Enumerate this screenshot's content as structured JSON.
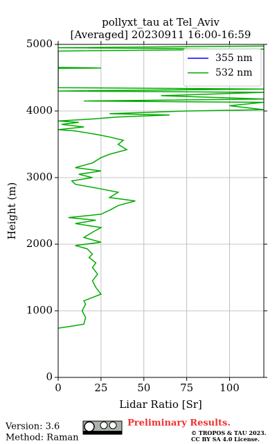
{
  "chart_data": {
    "type": "line",
    "title": "pollyxt_tau at Tel_Aviv",
    "subtitle": "[Averaged] 20230911 16:00-16:59",
    "x_label": "Lidar Ratio [Sr]",
    "y_label": "Height (m)",
    "xlim": [
      0,
      120
    ],
    "xticks": [
      0,
      25,
      50,
      75,
      100
    ],
    "ylim": [
      0,
      5000
    ],
    "yticks": [
      0,
      1000,
      2000,
      3000,
      4000,
      5000
    ],
    "grid": true,
    "legend": "upper right",
    "series": [
      {
        "name": "355 nm",
        "color": "#0000ff",
        "x": [],
        "values": []
      },
      {
        "name": "532 nm",
        "color": "#00aa00",
        "x": [
          0,
          8,
          15,
          16,
          14,
          16,
          15,
          20,
          25,
          22,
          20,
          23,
          20,
          22,
          18,
          20,
          17,
          10,
          25,
          15,
          20,
          25,
          10,
          22,
          6,
          25,
          30,
          35,
          45,
          30,
          35,
          25,
          10,
          8,
          20,
          12,
          25,
          10,
          20,
          25,
          30,
          40,
          35,
          38,
          30,
          22,
          10,
          0,
          15,
          2,
          12,
          0,
          20,
          35,
          65,
          30,
          75,
          120,
          100,
          120,
          15,
          120,
          60,
          120,
          0,
          120,
          0,
          0,
          25,
          0,
          0,
          120,
          0,
          120
        ],
        "values": [
          740,
          770,
          800,
          900,
          1000,
          1100,
          1150,
          1200,
          1250,
          1350,
          1450,
          1550,
          1650,
          1720,
          1800,
          1850,
          1930,
          1980,
          2030,
          2100,
          2180,
          2250,
          2310,
          2360,
          2400,
          2450,
          2510,
          2580,
          2650,
          2700,
          2780,
          2830,
          2900,
          2950,
          3000,
          3050,
          3100,
          3150,
          3220,
          3300,
          3350,
          3420,
          3500,
          3560,
          3610,
          3650,
          3700,
          3720,
          3760,
          3800,
          3830,
          3850,
          3880,
          3910,
          3940,
          3960,
          4000,
          4020,
          4080,
          4130,
          4150,
          4180,
          4230,
          4280,
          4300,
          4330,
          4350,
          4640,
          4645,
          4655,
          4900,
          4930,
          4950,
          4975
        ]
      }
    ]
  },
  "footer": {
    "version": "Version: 3.6",
    "method": "Method: Raman",
    "preliminary": "Preliminary Results.",
    "copyright": "© TROPOS & TAU 2023.",
    "license": "CC BY SA 4.0 License."
  }
}
